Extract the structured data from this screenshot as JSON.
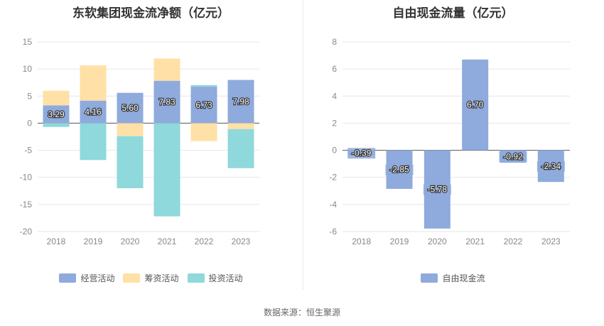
{
  "chart_data": [
    {
      "type": "bar",
      "stacked": true,
      "title": "东软集团现金流净额（亿元）",
      "categories": [
        "2018",
        "2019",
        "2020",
        "2021",
        "2022",
        "2023"
      ],
      "ylim": [
        -20,
        15
      ],
      "yticks": [
        15,
        10,
        5,
        0,
        -5,
        -10,
        -15,
        -20
      ],
      "grid": true,
      "legend_position": "bottom",
      "series": [
        {
          "name": "经营活动",
          "color": "#8faadc",
          "values": [
            3.29,
            4.16,
            5.6,
            7.83,
            6.73,
            7.98
          ],
          "labels": [
            "3.29",
            "4.16",
            "5.60",
            "7.83",
            "6.73",
            "7.98"
          ]
        },
        {
          "name": "筹资活动",
          "color": "#ffe0a6",
          "values": [
            2.7,
            6.5,
            -2.4,
            4.1,
            -3.3,
            -1.1
          ]
        },
        {
          "name": "投资活动",
          "color": "#8fd8dc",
          "values": [
            -0.7,
            -6.8,
            -9.6,
            -17.2,
            0.3,
            -7.2
          ]
        }
      ]
    },
    {
      "type": "bar",
      "title": "自由现金流量（亿元）",
      "categories": [
        "2018",
        "2019",
        "2020",
        "2021",
        "2022",
        "2023"
      ],
      "ylim": [
        -6,
        8
      ],
      "yticks": [
        8,
        6,
        4,
        2,
        0,
        -2,
        -4,
        -6
      ],
      "grid": true,
      "legend_position": "bottom",
      "series": [
        {
          "name": "自由现金流",
          "color": "#8faadc",
          "values": [
            -0.39,
            -2.85,
            -5.78,
            6.7,
            -0.92,
            -2.34
          ],
          "labels": [
            "-0.39",
            "-2.85",
            "-5.78",
            "6.70",
            "-0.92",
            "-2.34"
          ]
        }
      ]
    }
  ],
  "source_text": "数据来源：恒生聚源"
}
